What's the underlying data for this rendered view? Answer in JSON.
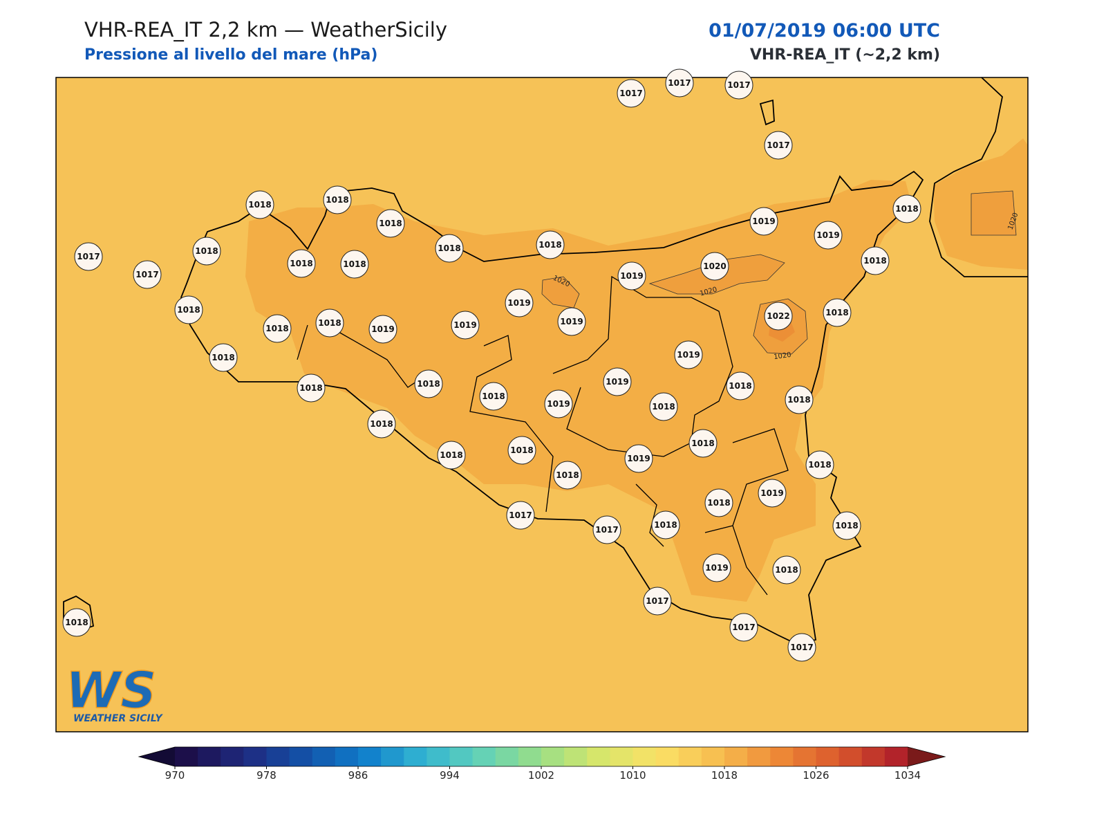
{
  "header": {
    "title": "VHR-REA_IT 2,2 km — WeatherSicily",
    "subtitle": "Pressione al livello del mare (hPa)",
    "datetime": "01/07/2019 06:00 UTC",
    "model": "VHR-REA_IT (~2,2 km)"
  },
  "map": {
    "background_color": "#f6c257",
    "high_color": "#f3ae45",
    "peak_color": "#ef9f3d",
    "coast_color": "#000000"
  },
  "stations": [
    1017,
    1017,
    1017,
    1017,
    1018,
    1018,
    1018,
    1018,
    1018,
    1017,
    1017,
    1018,
    1018,
    1018,
    1019,
    1019,
    1018,
    1018,
    1019,
    1020,
    1019,
    1019,
    1019,
    1019,
    1018,
    1018,
    1018,
    1018,
    1022,
    1018,
    1019,
    1019,
    1018,
    1018,
    1018,
    1018,
    1018,
    1019,
    1018,
    1018,
    1018,
    1018,
    1018,
    1019,
    1018,
    1018,
    1018,
    1019,
    1017,
    1017,
    1018,
    1018,
    1019,
    1018,
    1017,
    1017,
    1017,
    1018
  ],
  "contour_labels": [
    1020,
    1020,
    1020,
    1020
  ],
  "colorbar": {
    "min": 970,
    "max": 1034,
    "step": 2,
    "ticks": [
      970,
      978,
      986,
      994,
      1002,
      1010,
      1018,
      1026,
      1034
    ],
    "colors": [
      "#1c0f4a",
      "#1f2a80",
      "#1352a8",
      "#0f7ccb",
      "#33b5d2",
      "#63d2b7",
      "#9bde86",
      "#d8e66a",
      "#fbe166",
      "#f7bd4f",
      "#ee8a37",
      "#db5a2c",
      "#b2232a"
    ],
    "under_color": "#130b35",
    "over_color": "#7a1a1a"
  },
  "logo": {
    "initials": "WS",
    "name": "WEATHER SICILY"
  }
}
